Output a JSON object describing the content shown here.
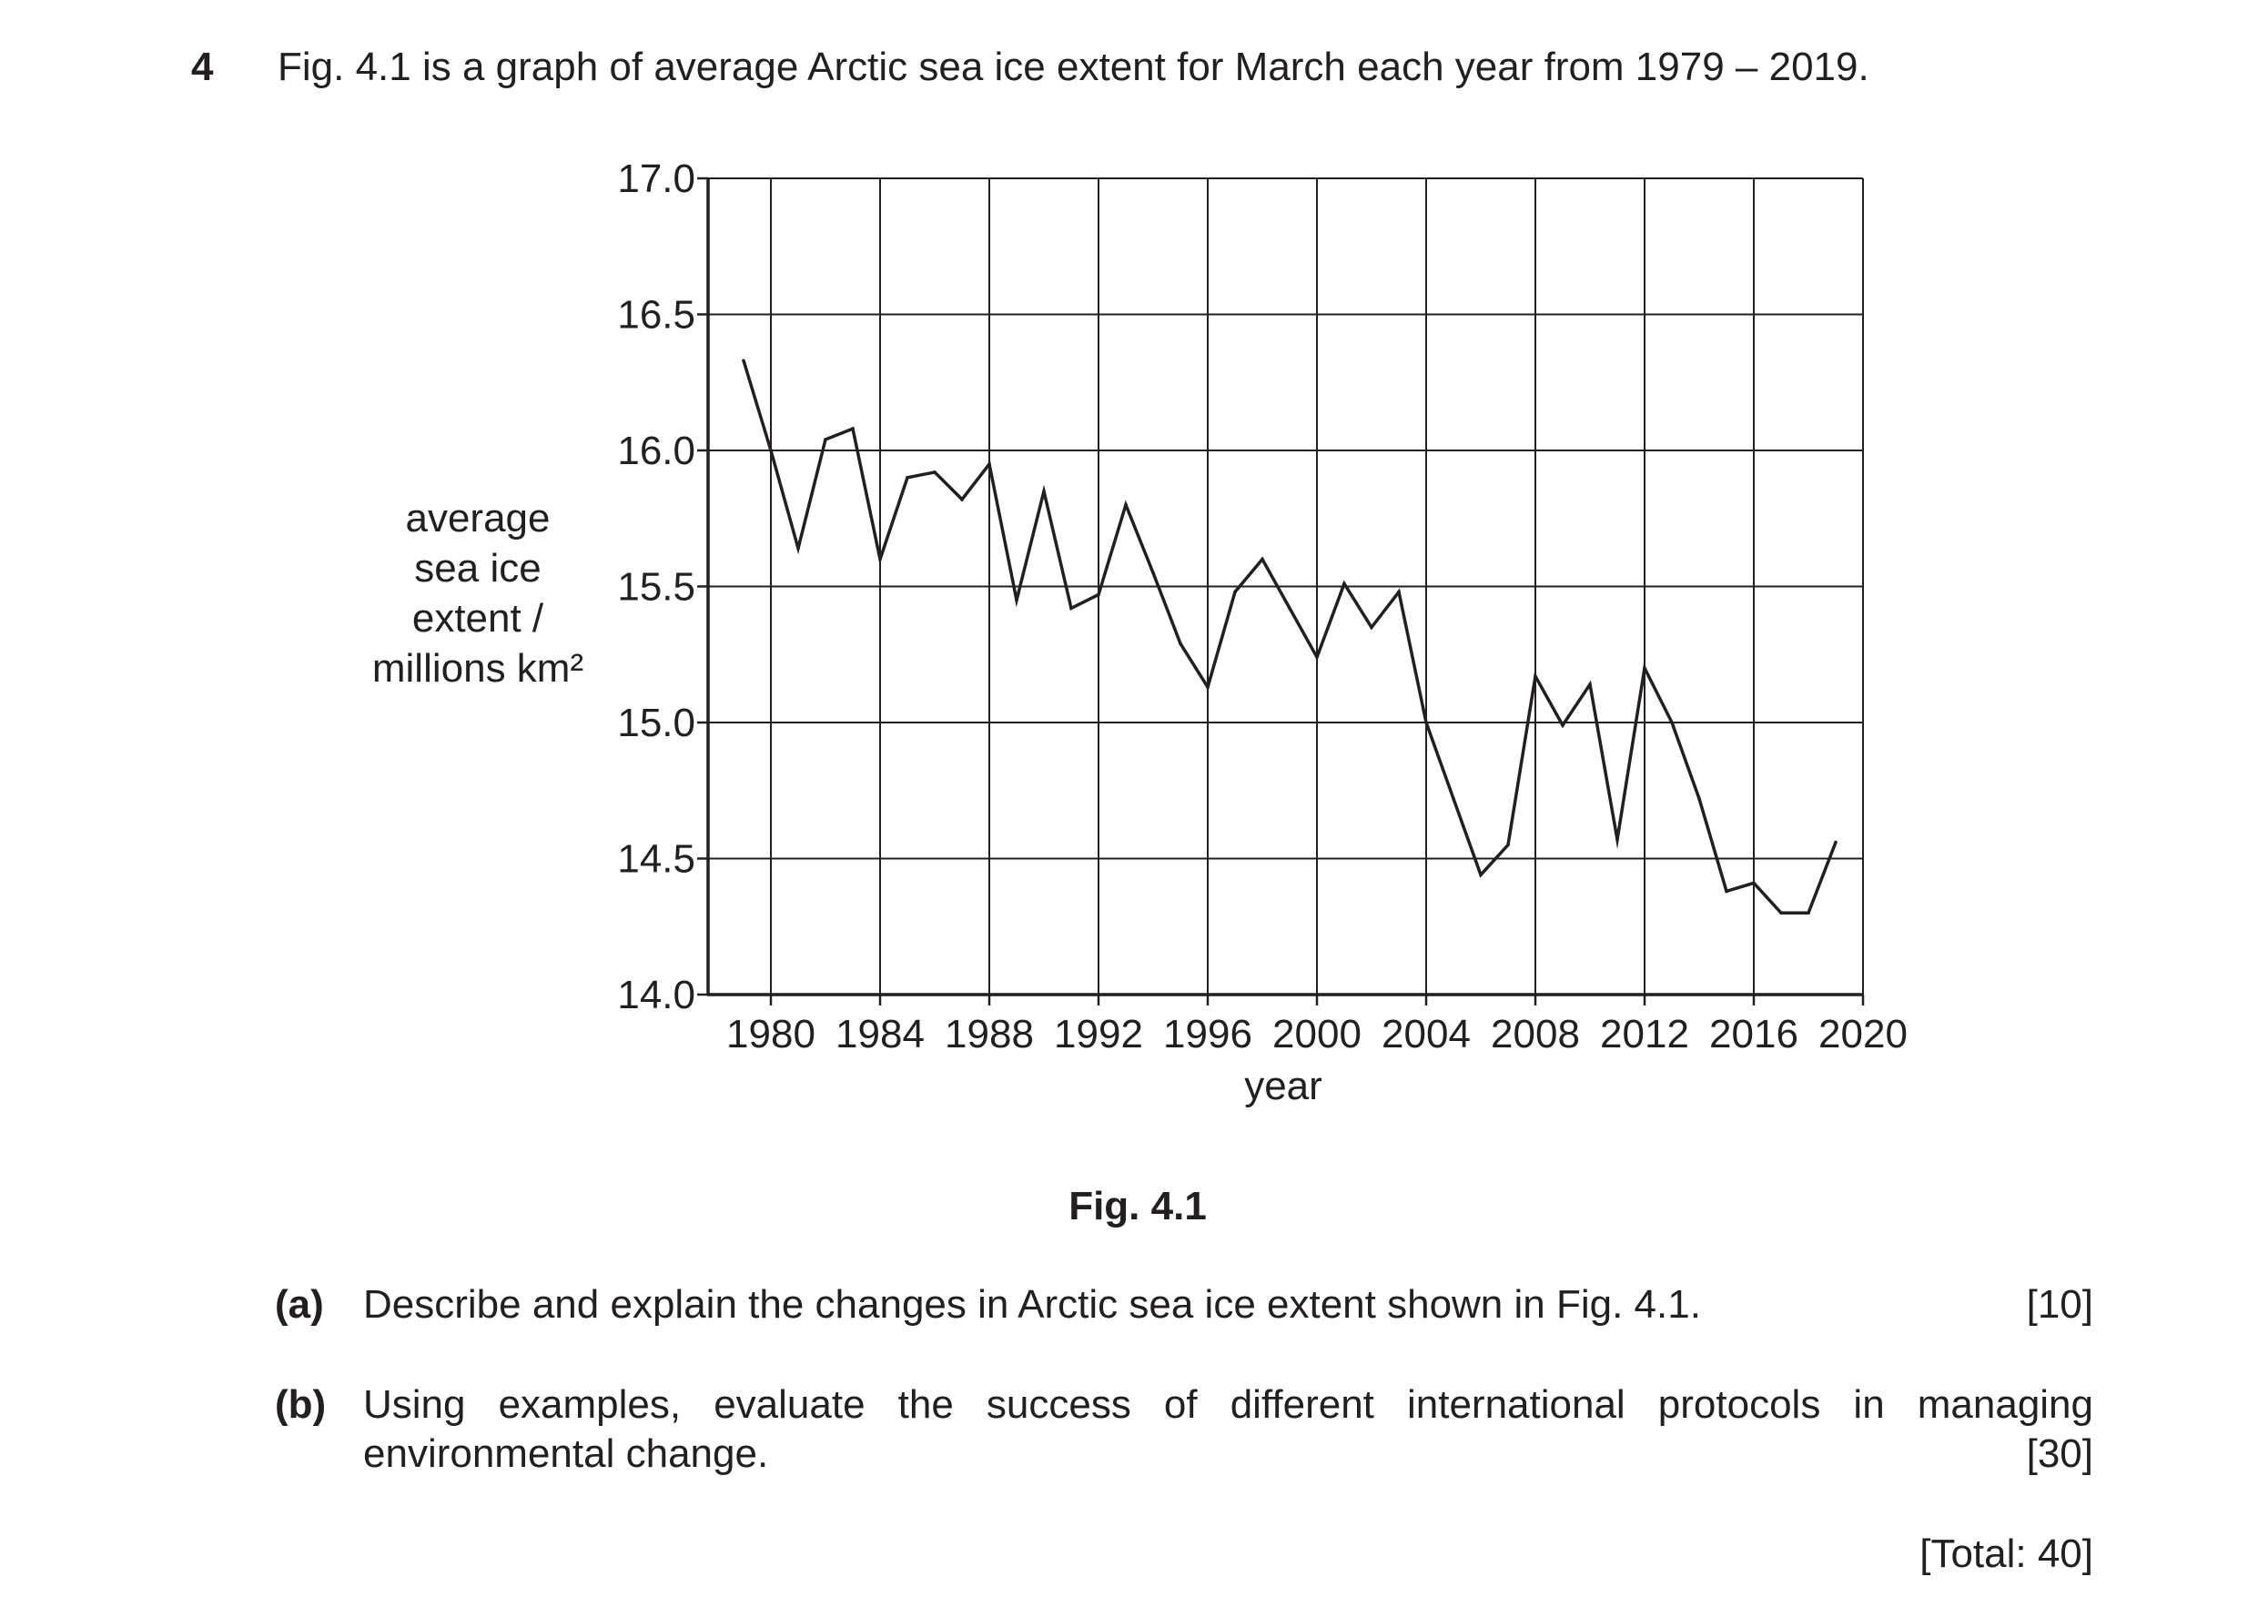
{
  "question": {
    "number": "4",
    "intro": "Fig. 4.1 is a graph of average Arctic sea ice extent for March each year from 1979 – 2019."
  },
  "figure": {
    "caption": "Fig. 4.1"
  },
  "chart_data": {
    "type": "line",
    "title": "",
    "xlabel": "year",
    "ylabel": [
      "average",
      "sea ice",
      "extent /",
      "millions km²"
    ],
    "xlim": [
      1977.7,
      2020
    ],
    "ylim": [
      14.0,
      17.0
    ],
    "x_ticks": [
      1980,
      1984,
      1988,
      1992,
      1996,
      2000,
      2004,
      2008,
      2012,
      2016,
      2020
    ],
    "x_tick_labels": [
      "1980",
      "1984",
      "1988",
      "1992",
      "1996",
      "2000",
      "2004",
      "2008",
      "2012",
      "2016",
      "2020"
    ],
    "y_ticks": [
      14.0,
      14.5,
      15.0,
      15.5,
      16.0,
      16.5,
      17.0
    ],
    "y_tick_labels": [
      "14.0",
      "14.5",
      "15.0",
      "15.5",
      "16.0",
      "16.5",
      "17.0"
    ],
    "grid": true,
    "legend": false,
    "series": [
      {
        "x": [
          1979,
          1980,
          1981,
          1982,
          1983,
          1984,
          1985,
          1986,
          1987,
          1988,
          1989,
          1990,
          1991,
          1992,
          1993,
          1994,
          1995,
          1996,
          1997,
          1998,
          1999,
          2000,
          2001,
          2002,
          2003,
          2004,
          2005,
          2006,
          2007,
          2008,
          2009,
          2010,
          2011,
          2012,
          2013,
          2014,
          2015,
          2016,
          2017,
          2018,
          2019
        ],
        "values": [
          16.33,
          16.0,
          15.64,
          16.04,
          16.08,
          15.6,
          15.9,
          15.92,
          15.82,
          15.95,
          15.45,
          15.85,
          15.42,
          15.47,
          15.8,
          15.55,
          15.29,
          15.13,
          15.48,
          15.6,
          15.42,
          15.24,
          15.51,
          15.35,
          15.48,
          15.0,
          14.72,
          14.44,
          14.55,
          15.17,
          14.99,
          15.14,
          14.57,
          15.2,
          15.0,
          14.72,
          14.38,
          14.41,
          14.3,
          14.3,
          14.56
        ]
      }
    ]
  },
  "parts": [
    {
      "label": "(a)",
      "text": "Describe and explain the changes in Arctic sea ice extent shown in Fig. 4.1.",
      "marks": "[10]"
    },
    {
      "label": "(b)",
      "text_line1": "Using examples, evaluate the success of different international protocols in managing",
      "text_line2": "environmental change.",
      "marks": "[30]"
    }
  ],
  "total": "[Total: 40]"
}
